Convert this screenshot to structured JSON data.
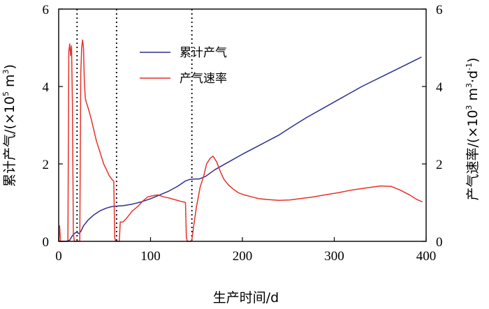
{
  "chart_data": {
    "type": "line",
    "xlabel": "生产时间/d",
    "ylabel_left": "累计产气/(×10^5 m^3)",
    "ylabel_left_parts": {
      "main": "累计产气/(×10",
      "exp1": "5",
      "mid": " m",
      "exp2": "3",
      "end": ")"
    },
    "ylabel_right": "产气速率/(×10^3 m^3·d^-1)",
    "ylabel_right_parts": {
      "main": "产气速率/(×10",
      "exp1": "3",
      "mid": " m",
      "exp2": "3",
      "mid2": "·d",
      "exp3": "-1",
      "end": ")"
    },
    "xlim": [
      0,
      400
    ],
    "ylim_left": [
      0,
      6
    ],
    "ylim_right": [
      0,
      6
    ],
    "xticks": [
      0,
      100,
      200,
      300,
      400
    ],
    "yticks_left": [
      0,
      2,
      4,
      6
    ],
    "yticks_right": [
      0,
      2,
      4,
      6
    ],
    "legend_position": "upper-center",
    "grid": false,
    "vlines": [
      20,
      63,
      145
    ],
    "series": [
      {
        "name": "累计产气",
        "color": "#2b2f8f",
        "axis": "left",
        "points": [
          [
            0,
            0
          ],
          [
            8,
            0
          ],
          [
            12,
            0.03
          ],
          [
            15,
            0.15
          ],
          [
            18,
            0.22
          ],
          [
            20,
            0.23
          ],
          [
            22,
            0.2
          ],
          [
            24,
            0.25
          ],
          [
            27,
            0.4
          ],
          [
            32,
            0.55
          ],
          [
            38,
            0.68
          ],
          [
            45,
            0.79
          ],
          [
            52,
            0.86
          ],
          [
            58,
            0.9
          ],
          [
            63,
            0.91
          ],
          [
            70,
            0.92
          ],
          [
            80,
            0.96
          ],
          [
            90,
            1.02
          ],
          [
            100,
            1.1
          ],
          [
            110,
            1.2
          ],
          [
            120,
            1.3
          ],
          [
            130,
            1.43
          ],
          [
            138,
            1.56
          ],
          [
            143,
            1.6
          ],
          [
            148,
            1.61
          ],
          [
            153,
            1.61
          ],
          [
            160,
            1.68
          ],
          [
            170,
            1.85
          ],
          [
            185,
            2.05
          ],
          [
            200,
            2.25
          ],
          [
            220,
            2.5
          ],
          [
            240,
            2.75
          ],
          [
            255,
            2.98
          ],
          [
            270,
            3.2
          ],
          [
            300,
            3.6
          ],
          [
            330,
            4.0
          ],
          [
            360,
            4.35
          ],
          [
            395,
            4.76
          ]
        ]
      },
      {
        "name": "产气速率",
        "color": "#e8312a",
        "axis": "right",
        "points": [
          [
            0,
            0
          ],
          [
            1,
            0.4
          ],
          [
            2,
            0
          ],
          [
            10,
            0
          ],
          [
            11,
            4.9
          ],
          [
            12,
            5.1
          ],
          [
            13,
            4.8
          ],
          [
            14,
            5.05
          ],
          [
            15,
            3.5
          ],
          [
            16,
            0.2
          ],
          [
            17,
            0
          ],
          [
            23,
            0
          ],
          [
            24,
            4.3
          ],
          [
            25,
            5.0
          ],
          [
            26,
            5.2
          ],
          [
            27,
            5.0
          ],
          [
            28,
            4.1
          ],
          [
            29,
            3.7
          ],
          [
            30,
            3.6
          ],
          [
            32,
            3.45
          ],
          [
            35,
            3.2
          ],
          [
            38,
            2.9
          ],
          [
            41,
            2.6
          ],
          [
            45,
            2.3
          ],
          [
            49,
            2.0
          ],
          [
            52,
            1.85
          ],
          [
            55,
            1.7
          ],
          [
            58,
            1.6
          ],
          [
            60,
            1.55
          ],
          [
            61,
            0.1
          ],
          [
            62,
            0
          ],
          [
            66,
            0
          ],
          [
            67,
            0.5
          ],
          [
            70,
            0.5
          ],
          [
            74,
            0.6
          ],
          [
            80,
            0.78
          ],
          [
            86,
            0.9
          ],
          [
            92,
            1.05
          ],
          [
            97,
            1.15
          ],
          [
            103,
            1.18
          ],
          [
            108,
            1.2
          ],
          [
            114,
            1.15
          ],
          [
            120,
            1.12
          ],
          [
            126,
            1.08
          ],
          [
            132,
            1.04
          ],
          [
            137,
            1.01
          ],
          [
            138,
            1.0
          ],
          [
            139,
            0.1
          ],
          [
            140,
            0
          ],
          [
            144,
            0
          ],
          [
            145,
            0.05
          ],
          [
            147,
            0.4
          ],
          [
            150,
            0.9
          ],
          [
            154,
            1.4
          ],
          [
            158,
            1.7
          ],
          [
            161,
            2.0
          ],
          [
            165,
            2.15
          ],
          [
            168,
            2.2
          ],
          [
            172,
            2.05
          ],
          [
            176,
            1.8
          ],
          [
            180,
            1.6
          ],
          [
            185,
            1.45
          ],
          [
            190,
            1.35
          ],
          [
            196,
            1.25
          ],
          [
            202,
            1.2
          ],
          [
            210,
            1.15
          ],
          [
            218,
            1.1
          ],
          [
            228,
            1.08
          ],
          [
            240,
            1.06
          ],
          [
            252,
            1.07
          ],
          [
            262,
            1.1
          ],
          [
            275,
            1.14
          ],
          [
            290,
            1.2
          ],
          [
            305,
            1.26
          ],
          [
            320,
            1.33
          ],
          [
            335,
            1.38
          ],
          [
            350,
            1.43
          ],
          [
            362,
            1.42
          ],
          [
            372,
            1.32
          ],
          [
            382,
            1.2
          ],
          [
            390,
            1.08
          ],
          [
            396,
            1.02
          ]
        ]
      }
    ]
  }
}
